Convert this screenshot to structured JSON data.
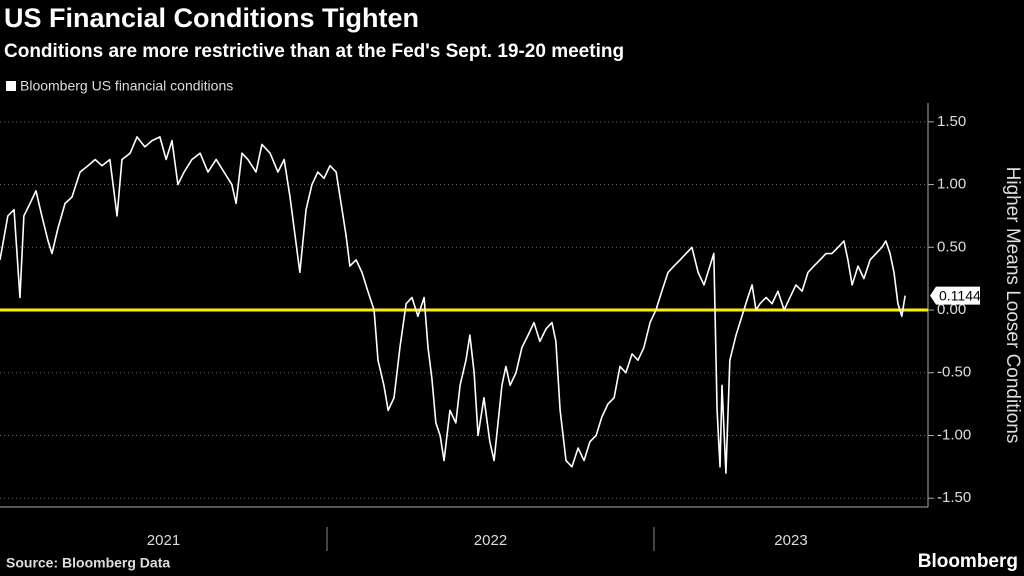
{
  "chart_data": {
    "type": "line",
    "title": "US Financial Conditions Tighten",
    "subtitle": "Conditions are more restrictive than at the Fed's Sept. 19-20 meeting",
    "y_axis_label": "Higher Means Looser Conditions",
    "source": "Source: Bloomberg Data",
    "brand": "Bloomberg",
    "year_labels": [
      "2021",
      "2022",
      "2023"
    ],
    "xlim": [
      2021,
      2023.838
    ],
    "xticks": [
      2022,
      2023
    ],
    "ylim": [
      -1.57,
      1.65
    ],
    "yticks": [
      {
        "value": 1.5,
        "label": "1.50"
      },
      {
        "value": 1,
        "label": "1.00"
      },
      {
        "value": 0.5,
        "label": "0.50"
      },
      {
        "value": 0,
        "label": "0.00"
      },
      {
        "value": -0.5,
        "label": "-0.50"
      },
      {
        "value": -1,
        "label": "-1.00"
      },
      {
        "value": -1.5,
        "label": "-1.50"
      }
    ],
    "grid": true,
    "zero_line_color": "#ffee00",
    "series": [
      {
        "name": "Bloomberg US financial conditions",
        "color": "#ffffff",
        "x": [
          2021.0,
          2021.024,
          2021.043,
          2021.061,
          2021.073,
          2021.092,
          2021.11,
          2021.128,
          2021.147,
          2021.159,
          2021.177,
          2021.199,
          2021.22,
          2021.245,
          2021.269,
          2021.291,
          2021.312,
          2021.336,
          2021.358,
          2021.373,
          2021.398,
          2021.419,
          2021.443,
          2021.465,
          2021.489,
          2021.508,
          2021.526,
          2021.544,
          2021.563,
          2021.587,
          2021.612,
          2021.636,
          2021.661,
          2021.685,
          2021.709,
          2021.722,
          2021.74,
          2021.758,
          2021.783,
          2021.801,
          2021.826,
          2021.85,
          2021.869,
          2021.887,
          2021.902,
          2021.917,
          2021.936,
          2021.954,
          2021.972,
          2021.991,
          2022.009,
          2022.028,
          2022.046,
          2022.058,
          2022.07,
          2022.089,
          2022.107,
          2022.125,
          2022.144,
          2022.156,
          2022.174,
          2022.187,
          2022.205,
          2022.223,
          2022.242,
          2022.26,
          2022.278,
          2022.297,
          2022.309,
          2022.321,
          2022.333,
          2022.346,
          2022.358,
          2022.376,
          2022.394,
          2022.407,
          2022.425,
          2022.437,
          2022.45,
          2022.462,
          2022.48,
          2022.498,
          2022.511,
          2022.523,
          2022.535,
          2022.547,
          2022.56,
          2022.578,
          2022.596,
          2022.615,
          2022.633,
          2022.651,
          2022.67,
          2022.688,
          2022.7,
          2022.713,
          2022.731,
          2022.749,
          2022.768,
          2022.786,
          2022.804,
          2022.823,
          2022.841,
          2022.859,
          2022.878,
          2022.896,
          2022.914,
          2022.933,
          2022.951,
          2022.969,
          2022.988,
          2023.006,
          2023.024,
          2023.043,
          2023.061,
          2023.08,
          2023.098,
          2023.116,
          2023.135,
          2023.153,
          2023.171,
          2023.183,
          2023.193,
          2023.202,
          2023.208,
          2023.22,
          2023.232,
          2023.251,
          2023.269,
          2023.287,
          2023.3,
          2023.312,
          2023.324,
          2023.343,
          2023.361,
          2023.379,
          2023.398,
          2023.416,
          2023.434,
          2023.453,
          2023.471,
          2023.489,
          2023.508,
          2023.526,
          2023.544,
          2023.563,
          2023.581,
          2023.593,
          2023.606,
          2023.624,
          2023.642,
          2023.661,
          2023.679,
          2023.697,
          2023.709,
          2023.722,
          2023.734,
          2023.746,
          2023.758,
          2023.768
        ],
        "values": [
          0.4,
          0.75,
          0.8,
          0.1,
          0.75,
          0.85,
          0.95,
          0.75,
          0.55,
          0.45,
          0.65,
          0.85,
          0.9,
          1.1,
          1.15,
          1.2,
          1.15,
          1.2,
          0.75,
          1.2,
          1.25,
          1.38,
          1.3,
          1.35,
          1.38,
          1.2,
          1.35,
          1.0,
          1.1,
          1.2,
          1.25,
          1.1,
          1.2,
          1.1,
          1.0,
          0.85,
          1.25,
          1.2,
          1.1,
          1.32,
          1.25,
          1.1,
          1.2,
          0.9,
          0.6,
          0.3,
          0.8,
          1.0,
          1.1,
          1.05,
          1.15,
          1.1,
          0.8,
          0.6,
          0.35,
          0.4,
          0.3,
          0.15,
          0.0,
          -0.4,
          -0.6,
          -0.8,
          -0.7,
          -0.3,
          0.05,
          0.1,
          -0.05,
          0.1,
          -0.3,
          -0.55,
          -0.9,
          -1.0,
          -1.2,
          -0.8,
          -0.9,
          -0.6,
          -0.4,
          -0.2,
          -0.5,
          -1.0,
          -0.7,
          -1.05,
          -1.2,
          -0.9,
          -0.6,
          -0.45,
          -0.6,
          -0.5,
          -0.3,
          -0.2,
          -0.1,
          -0.25,
          -0.15,
          -0.1,
          -0.25,
          -0.8,
          -1.2,
          -1.25,
          -1.1,
          -1.2,
          -1.05,
          -1.0,
          -0.85,
          -0.75,
          -0.7,
          -0.45,
          -0.5,
          -0.35,
          -0.4,
          -0.3,
          -0.1,
          0.0,
          0.15,
          0.3,
          0.35,
          0.4,
          0.45,
          0.5,
          0.3,
          0.2,
          0.35,
          0.45,
          -0.8,
          -1.25,
          -0.6,
          -1.3,
          -0.4,
          -0.2,
          -0.05,
          0.1,
          0.2,
          0.0,
          0.05,
          0.1,
          0.05,
          0.15,
          0.0,
          0.1,
          0.2,
          0.15,
          0.3,
          0.35,
          0.4,
          0.45,
          0.45,
          0.5,
          0.55,
          0.4,
          0.2,
          0.35,
          0.25,
          0.4,
          0.45,
          0.5,
          0.55,
          0.45,
          0.3,
          0.05,
          -0.05,
          0.1144
        ]
      }
    ]
  }
}
